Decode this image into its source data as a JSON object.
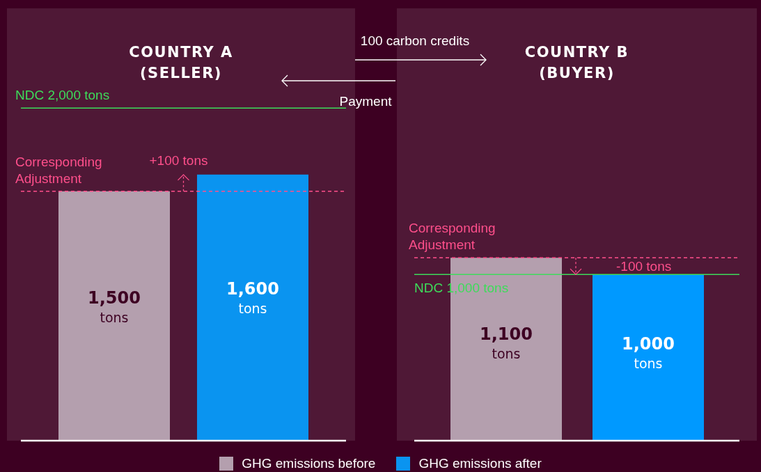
{
  "chart_data": [
    {
      "type": "bar",
      "title": "COUNTRY A\n(SELLER)",
      "categories": [
        null
      ],
      "series": [
        {
          "name": "GHG emissions before",
          "color": "#b49fae",
          "values": [
            1500
          ],
          "value_labels": [
            "1,500 tons"
          ]
        },
        {
          "name": "GHG emissions after",
          "color": "#0a94f0",
          "values": [
            1600
          ],
          "value_labels": [
            "1,600 tons"
          ]
        }
      ],
      "ylim": [
        0,
        2600
      ],
      "ref_lines": [
        {
          "axis": "y",
          "value": 2000,
          "label": "NDC 2,000 tons",
          "color": "#3ddc5a",
          "line_style": "solid"
        },
        {
          "axis": "y",
          "value": 1500,
          "label": "Corresponding Adjustment",
          "color": "#ff4f8b",
          "line_style": "dashed"
        }
      ],
      "annotations": [
        "+100 tons",
        "100 carbon credits",
        "Payment"
      ],
      "legend": "bottom"
    },
    {
      "type": "bar",
      "title": "COUNTRY B\n(BUYER)",
      "categories": [
        null
      ],
      "series": [
        {
          "color": "#b49fae",
          "values": [
            1100
          ],
          "value_labels": [
            "1,100 tons"
          ]
        },
        {
          "color": "#0099ff",
          "values": [
            1000
          ],
          "value_labels": [
            "1,000 tons"
          ]
        }
      ],
      "ylim": [
        0,
        2600
      ],
      "ref_lines": [
        {
          "axis": "y",
          "value": 1100,
          "label": "Corresponding Adjustment",
          "color": "#ff4f8b",
          "line_style": "dashed"
        },
        {
          "axis": "y",
          "value": 1000,
          "label": "NDC 1,000 tons",
          "color": "#3ddc5a",
          "line_style": "solid"
        }
      ],
      "annotations": [
        "-100 tons"
      ]
    }
  ]
}
